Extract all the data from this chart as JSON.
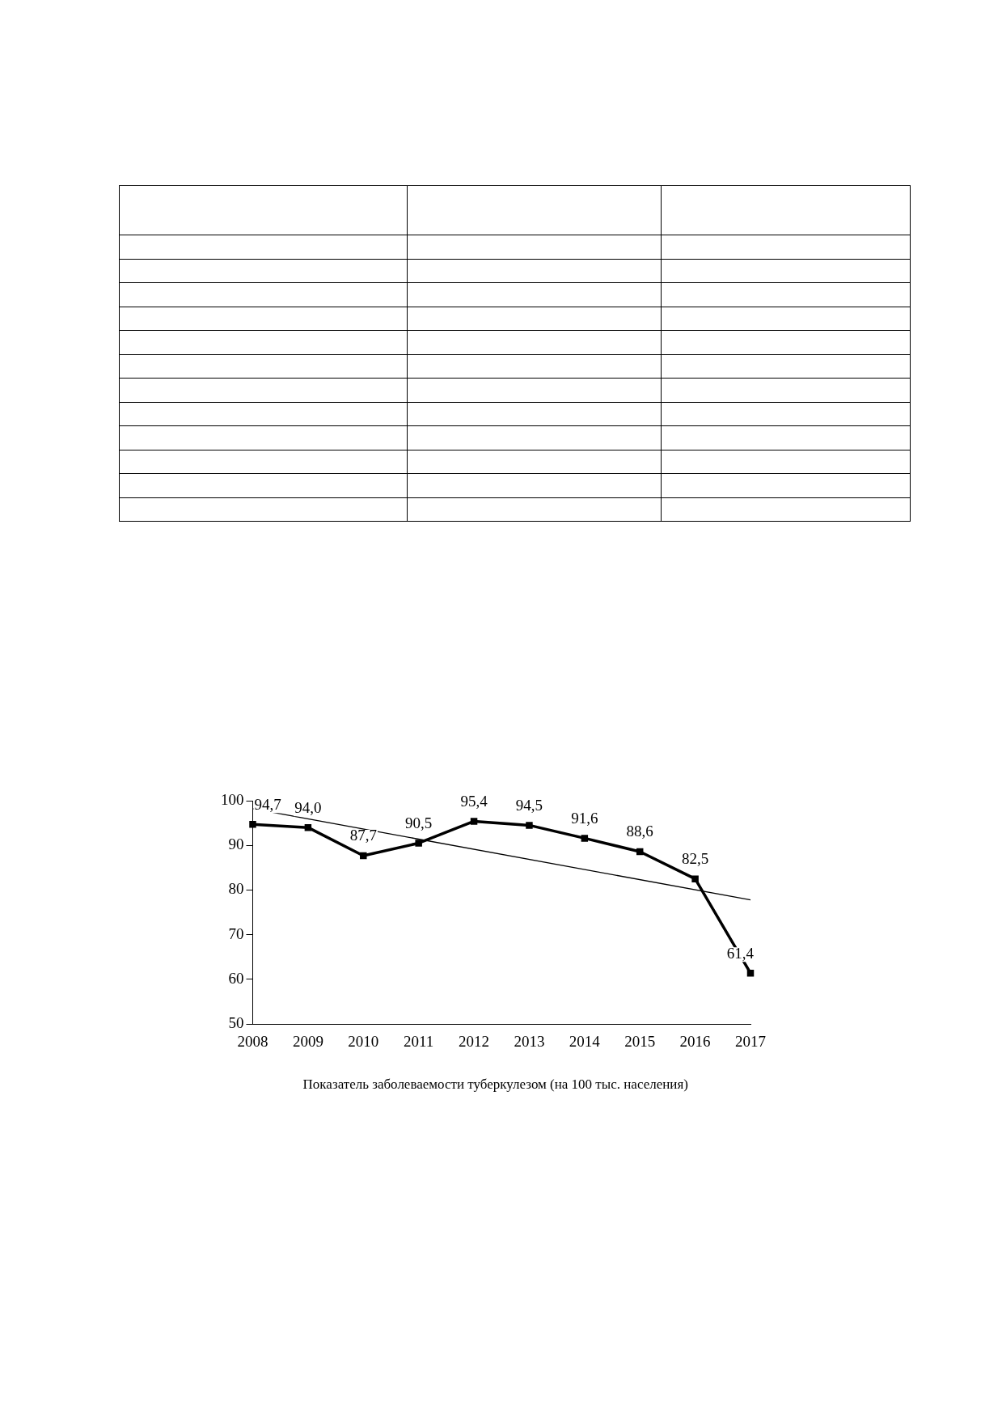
{
  "chart_data": {
    "type": "line",
    "categories": [
      "2008",
      "2009",
      "2010",
      "2011",
      "2012",
      "2013",
      "2014",
      "2015",
      "2016",
      "2017"
    ],
    "series": [
      {
        "name": "Показатель заболеваемости туберкулезом (на 100 тыс. населения)",
        "color": "#000000",
        "values": [
          94.7,
          94.0,
          87.7,
          90.5,
          95.4,
          94.5,
          91.6,
          88.6,
          82.5,
          61.4
        ],
        "marker": "square",
        "value_labels": [
          "94,7",
          "94,0",
          "87,7",
          "90,5",
          "95,4",
          "94,5",
          "91,6",
          "88,6",
          "82,5",
          "61,4"
        ]
      },
      {
        "type": "line",
        "color": "#000000",
        "values": [
          98.2,
          null,
          null,
          null,
          null,
          null,
          null,
          null,
          null,
          77.8
        ],
        "marker": "none"
      }
    ],
    "ylim": [
      50,
      100
    ],
    "yticks": [
      50,
      60,
      70,
      80,
      90,
      100
    ],
    "grid": false,
    "legend": "bottom"
  }
}
